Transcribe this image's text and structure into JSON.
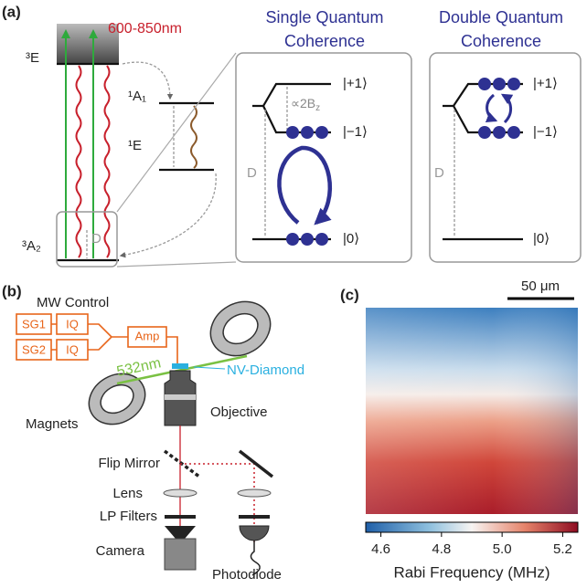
{
  "panel_a": {
    "label": "(a)",
    "wavelength": "600-850nm",
    "levels": {
      "excited": "³E",
      "singlet_upper": "¹A₁",
      "singlet_lower": "¹E",
      "ground": "³A₂"
    },
    "splitting": "D",
    "single": {
      "title_1": "Single Quantum",
      "title_2": "Coherence",
      "plus": "|+1⟩",
      "minus": "|−1⟩",
      "zero": "|0⟩",
      "zeeman": "∝2B",
      "zeeman_sub": "z",
      "split": "D"
    },
    "double": {
      "title_1": "Double Quantum",
      "title_2": "Coherence",
      "plus": "|+1⟩",
      "minus": "|−1⟩",
      "zero": "|0⟩",
      "split": "D"
    }
  },
  "panel_b": {
    "label": "(b)",
    "mw_control": "MW Control",
    "sg1": "SG1",
    "sg2": "SG2",
    "iq1": "IQ",
    "iq2": "IQ",
    "amp": "Amp",
    "laser": "532nm",
    "sample": "NV-Diamond",
    "magnets": "Magnets",
    "objective": "Objective",
    "flip_mirror": "Flip Mirror",
    "lens": "Lens",
    "filters": "LP Filters",
    "camera": "Camera",
    "photodiode": "Photodiode"
  },
  "panel_c": {
    "label": "(c)",
    "scale_bar": "50 μm",
    "colorbar": {
      "label": "Rabi Frequency (MHz)",
      "clim": [
        4.55,
        5.25
      ],
      "ticks": [
        4.6,
        4.8,
        {
          "value": 5,
          "label": "5.0"
        },
        5.2
      ]
    }
  }
}
